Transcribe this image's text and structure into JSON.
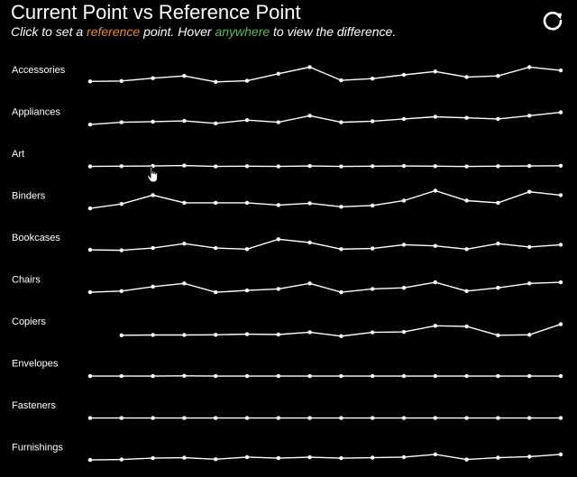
{
  "header": {
    "title": "Current Point vs Reference Point",
    "subtitle_part1": "Click to set a ",
    "subtitle_ref": "reference",
    "subtitle_part2": " point. Hover ",
    "subtitle_any": "anywhere",
    "subtitle_part3": " to view the difference."
  },
  "colors": {
    "background": "#000000",
    "line": "#ffffff",
    "reference": "#e8862a",
    "anywhere": "#5cb85c"
  },
  "icons": {
    "reset": "refresh-icon",
    "cursor": "hand-pointer-icon"
  },
  "chart_data": {
    "type": "line",
    "x": [
      1,
      2,
      3,
      4,
      5,
      6,
      7,
      8,
      9,
      10,
      11,
      12,
      13,
      14,
      15,
      16
    ],
    "series": [
      {
        "name": "Accessories",
        "values": [
          1.5,
          1.7,
          3.0,
          4.0,
          1.3,
          1.8,
          5.0,
          8.0,
          2.0,
          2.8,
          4.5,
          6.0,
          3.5,
          4.0,
          8.0,
          6.5
        ]
      },
      {
        "name": "Appliances",
        "values": [
          1.0,
          2.0,
          2.3,
          2.6,
          1.5,
          3.0,
          2.0,
          5.0,
          2.0,
          2.5,
          3.5,
          4.5,
          4.0,
          3.5,
          5.0,
          6.5
        ]
      },
      {
        "name": "Art",
        "values": [
          1.0,
          1.1,
          1.2,
          1.4,
          1.0,
          1.1,
          1.0,
          1.2,
          1.0,
          1.1,
          1.2,
          1.1,
          1.0,
          1.1,
          1.2,
          1.3
        ]
      },
      {
        "name": "Binders",
        "values": [
          1.0,
          3.0,
          7.0,
          3.5,
          3.5,
          3.5,
          2.5,
          3.3,
          1.7,
          2.3,
          4.5,
          9.0,
          4.5,
          3.5,
          8.5,
          7.0
        ]
      },
      {
        "name": "Bookcases",
        "values": [
          1.2,
          1.0,
          2.0,
          4.0,
          2.0,
          1.5,
          6.0,
          4.5,
          1.5,
          1.8,
          3.5,
          3.0,
          1.5,
          4.0,
          2.5,
          3.5
        ]
      },
      {
        "name": "Chairs",
        "values": [
          1.0,
          1.5,
          3.5,
          5.0,
          1.0,
          1.8,
          2.5,
          5.0,
          1.0,
          2.5,
          3.0,
          5.5,
          1.5,
          3.0,
          5.0,
          5.5
        ]
      },
      {
        "name": "Copiers",
        "values": [
          null,
          0.5,
          0.6,
          0.6,
          0.7,
          1.0,
          0.8,
          1.9,
          0.1,
          1.8,
          2.0,
          4.8,
          4.5,
          0.5,
          0.7,
          5.5
        ]
      },
      {
        "name": "Envelopes",
        "values": [
          1.0,
          1.0,
          1.0,
          1.1,
          1.0,
          1.0,
          1.0,
          1.0,
          1.0,
          1.0,
          1.0,
          1.0,
          1.0,
          1.0,
          1.0,
          1.0
        ]
      },
      {
        "name": "Fasteners",
        "values": [
          1.0,
          1.0,
          1.0,
          1.0,
          1.0,
          1.0,
          1.0,
          1.0,
          1.0,
          1.0,
          1.0,
          1.0,
          1.0,
          1.0,
          1.0,
          1.0
        ]
      },
      {
        "name": "Furnishings",
        "values": [
          1.0,
          1.2,
          1.8,
          2.0,
          1.3,
          2.3,
          1.8,
          2.2,
          1.8,
          2.0,
          2.3,
          3.5,
          1.2,
          2.0,
          2.5,
          3.5
        ]
      }
    ]
  }
}
